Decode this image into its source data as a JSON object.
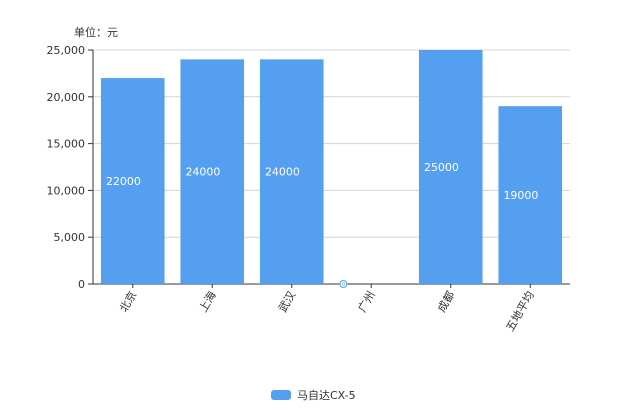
{
  "chart_data": {
    "type": "bar",
    "unit_label": "单位：元",
    "categories": [
      "北京",
      "上海",
      "武汉",
      "广州",
      "成都",
      "五地平均"
    ],
    "series": [
      {
        "name": "马自达CX-5",
        "values": [
          22000,
          24000,
          24000,
          0,
          25000,
          19000
        ]
      }
    ],
    "data_labels": [
      "22000",
      "24000",
      "24000",
      "0",
      "25000",
      "19000"
    ],
    "yticks": [
      "0",
      "5,000",
      "10,000",
      "15,000",
      "20,000",
      "25,000"
    ],
    "ylim": [
      0,
      25000
    ],
    "grid": true,
    "legend_position": "bottom",
    "color": "#559ff0"
  }
}
